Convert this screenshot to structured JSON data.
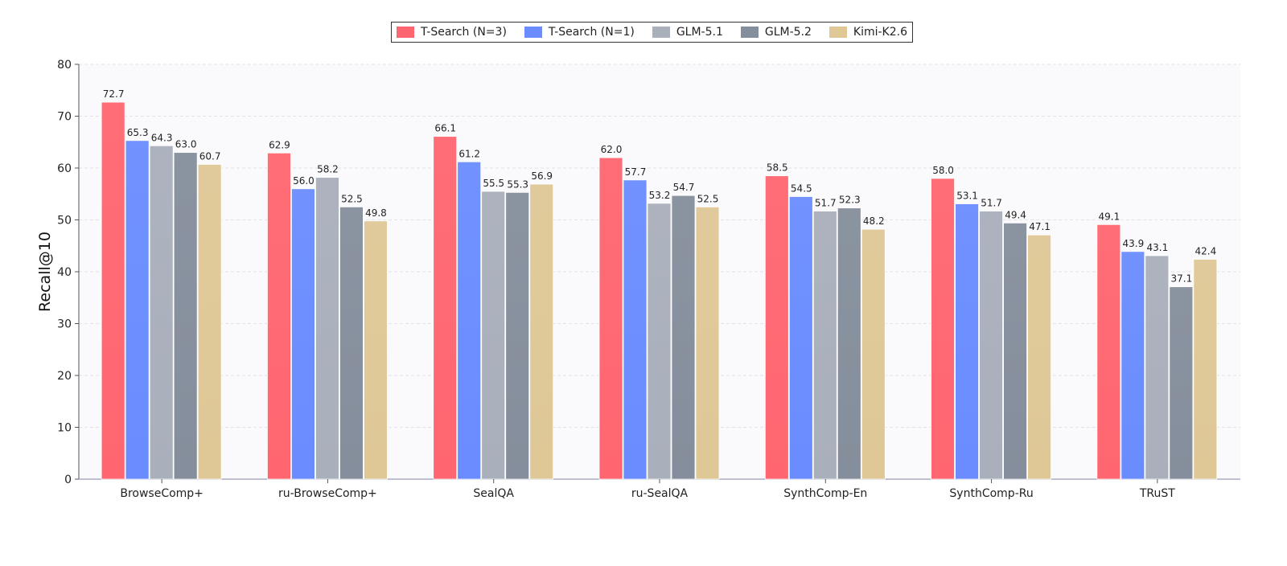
{
  "chart_data": {
    "type": "bar",
    "title": "",
    "xlabel": "",
    "ylabel": "Recall@10",
    "ylim": [
      0,
      80
    ],
    "yticks": [
      0,
      10,
      20,
      30,
      40,
      50,
      60,
      70,
      80
    ],
    "grid": "y, dashed",
    "legend_position": "top-center",
    "categories": [
      "BrowseComp+",
      "ru-BrowseComp+",
      "SealQA",
      "ru-SealQA",
      "SynthComp-En",
      "SynthComp-Ru",
      "TRuST"
    ],
    "series": [
      {
        "name": "T-Search (N=3)",
        "color": "#ff6670",
        "values": [
          72.7,
          62.9,
          66.1,
          62.0,
          58.5,
          58.0,
          49.1
        ]
      },
      {
        "name": "T-Search (N=1)",
        "color": "#6a8cff",
        "values": [
          65.3,
          56.0,
          61.2,
          57.7,
          54.5,
          53.1,
          43.9
        ]
      },
      {
        "name": "GLM-5.1",
        "color": "#a9afbb",
        "values": [
          64.3,
          58.2,
          55.5,
          53.2,
          51.7,
          51.7,
          43.1
        ]
      },
      {
        "name": "GLM-5.2",
        "color": "#858e9c",
        "values": [
          63.0,
          52.5,
          55.3,
          54.7,
          52.3,
          49.4,
          37.1
        ]
      },
      {
        "name": "Kimi-K2.6",
        "color": "#dfc896",
        "values": [
          60.7,
          49.8,
          56.9,
          52.5,
          48.2,
          47.1,
          42.4
        ]
      }
    ]
  }
}
